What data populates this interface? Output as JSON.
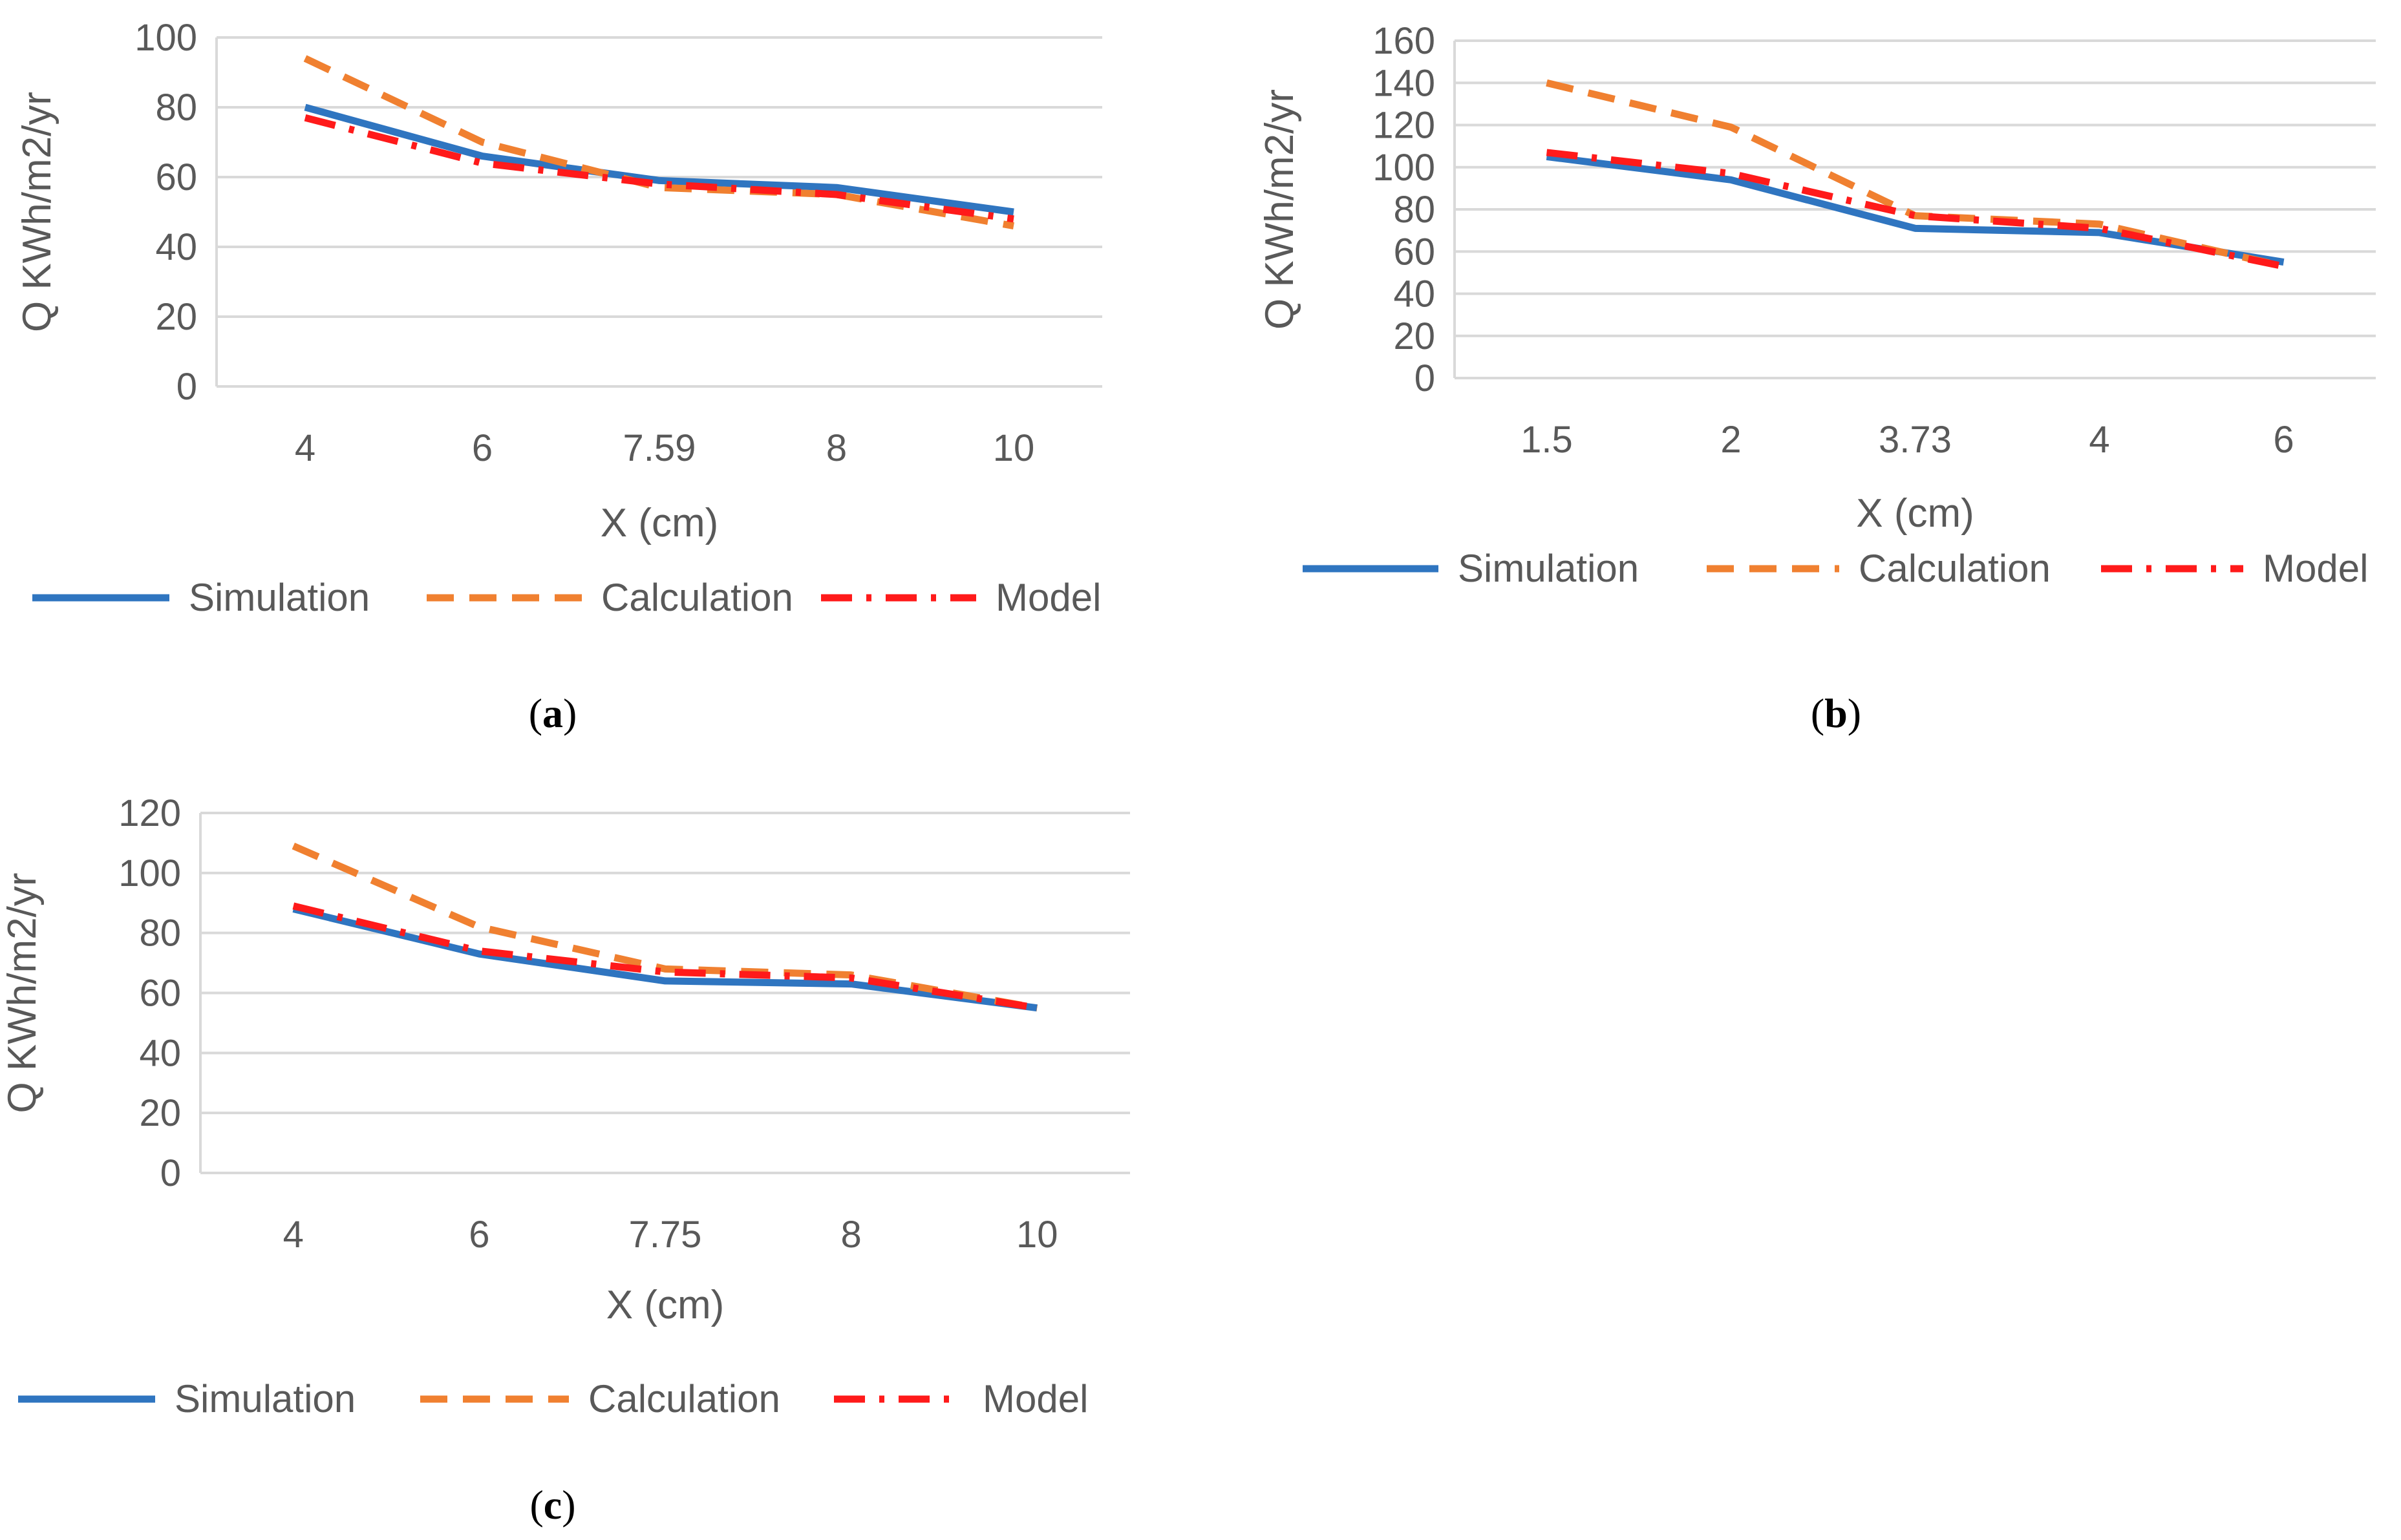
{
  "colors": {
    "simulation": "#2f75c0",
    "calculation": "#f08030",
    "model": "#ff1a1a",
    "grid": "#d9d9d9",
    "text": "#595959"
  },
  "chart_data": [
    {
      "panel": "(a)",
      "panel_letter": "a",
      "type": "line",
      "xlabel": "X (cm)",
      "ylabel": "Q KWh/m2/yr",
      "categories": [
        "4",
        "6",
        "7.59",
        "8",
        "10"
      ],
      "ylim": [
        0,
        100
      ],
      "yticks": [
        "0",
        "20",
        "40",
        "60",
        "80",
        "100"
      ],
      "grid": true,
      "legend_position": "bottom",
      "series": [
        {
          "name": "Simulation",
          "style": "solid",
          "values": [
            80,
            66,
            59,
            57,
            50
          ]
        },
        {
          "name": "Calculation",
          "style": "dashed",
          "values": [
            94,
            70,
            57,
            55,
            46
          ]
        },
        {
          "name": "Model",
          "style": "dash-dot",
          "values": [
            77,
            64,
            58,
            55,
            48
          ]
        }
      ]
    },
    {
      "panel": "(b)",
      "panel_letter": "b",
      "type": "line",
      "xlabel": "X (cm)",
      "ylabel": "Q KWh/m2/yr",
      "categories": [
        "1.5",
        "2",
        "3.73",
        "4",
        "6"
      ],
      "ylim": [
        0,
        160
      ],
      "yticks": [
        "0",
        "20",
        "40",
        "60",
        "80",
        "100",
        "120",
        "140",
        "160"
      ],
      "grid": true,
      "legend_position": "bottom",
      "series": [
        {
          "name": "Simulation",
          "style": "solid",
          "values": [
            105,
            94,
            71,
            69,
            55
          ]
        },
        {
          "name": "Calculation",
          "style": "dashed",
          "values": [
            140,
            119,
            77,
            73,
            53
          ]
        },
        {
          "name": "Model",
          "style": "dash-dot",
          "values": [
            107,
            97,
            77,
            71,
            53
          ]
        }
      ]
    },
    {
      "panel": "(c)",
      "panel_letter": "c",
      "type": "line",
      "xlabel": "X (cm)",
      "ylabel": "Q KWh/m2/yr",
      "categories": [
        "4",
        "6",
        "7.75",
        "8",
        "10"
      ],
      "ylim": [
        0,
        120
      ],
      "yticks": [
        "0",
        "20",
        "40",
        "60",
        "80",
        "100",
        "120"
      ],
      "grid": true,
      "legend_position": "bottom",
      "series": [
        {
          "name": "Simulation",
          "style": "solid",
          "values": [
            88,
            73,
            64,
            63,
            55
          ]
        },
        {
          "name": "Calculation",
          "style": "dashed",
          "values": [
            109,
            82,
            68,
            66,
            55
          ]
        },
        {
          "name": "Model",
          "style": "dash-dot",
          "values": [
            89,
            74,
            67,
            65,
            55
          ]
        }
      ]
    }
  ]
}
